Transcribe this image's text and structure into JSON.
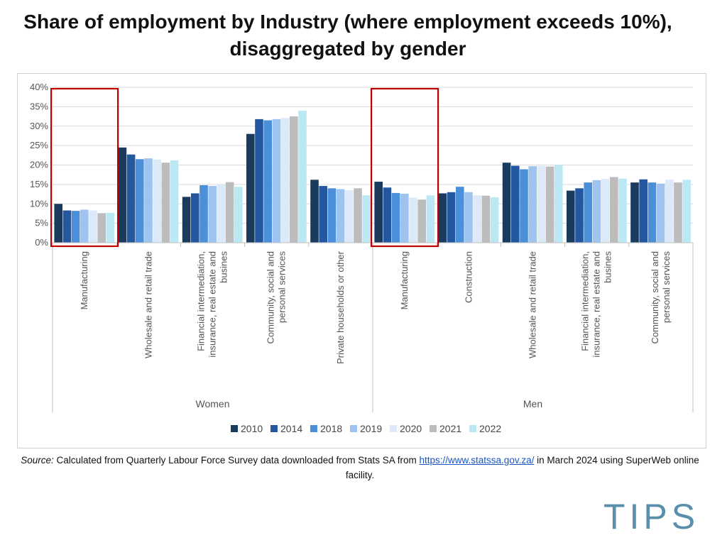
{
  "title": "Share of employment by Industry (where employment exceeds 10%), disaggregated by gender",
  "source": {
    "label": "Source:",
    "text_before": " Calculated from Quarterly Labour Force Survey data downloaded from Stats SA from ",
    "link": "https://www.statssa.gov.za/",
    "text_after": " in March 2024 using SuperWeb online facility."
  },
  "logo": {
    "text": "TIPS",
    "color": "#5a8fab",
    "accent": "#d9a441"
  },
  "chart_data": {
    "type": "bar",
    "yticks": [
      "0%",
      "5%",
      "10%",
      "15%",
      "20%",
      "25%",
      "30%",
      "35%",
      "40%"
    ],
    "ylim": [
      0,
      40
    ],
    "grid": true,
    "legend_position": "bottom",
    "highlight_color": "#c00000",
    "highlighted_categories": [
      "Women|Manufacturing",
      "Men|Manufacturing"
    ],
    "series": [
      {
        "name": "2010",
        "color": "#1a3a5e"
      },
      {
        "name": "2014",
        "color": "#2358a0"
      },
      {
        "name": "2018",
        "color": "#4a8fd8"
      },
      {
        "name": "2019",
        "color": "#9ec3ee"
      },
      {
        "name": "2020",
        "color": "#dbe9f8"
      },
      {
        "name": "2021",
        "color": "#bcbcbc"
      },
      {
        "name": "2022",
        "color": "#bce8f4"
      }
    ],
    "groups": [
      {
        "label": "Women",
        "categories": [
          {
            "lines": [
              "Manufacturing"
            ],
            "values": [
              10.0,
              8.3,
              8.2,
              8.5,
              8.3,
              7.6,
              7.7
            ]
          },
          {
            "lines": [
              "Wholesale and retail trade"
            ],
            "values": [
              24.5,
              22.7,
              21.5,
              21.7,
              21.4,
              20.6,
              21.2
            ]
          },
          {
            "lines": [
              "Financial intermediation,",
              "insurance, real estate and",
              "busines"
            ],
            "values": [
              11.8,
              12.7,
              14.8,
              14.6,
              15.0,
              15.6,
              14.4
            ]
          },
          {
            "lines": [
              "Community, social and",
              "personal services"
            ],
            "values": [
              28.0,
              31.8,
              31.5,
              31.8,
              32.1,
              32.5,
              34.0
            ]
          },
          {
            "lines": [
              "Private households or other"
            ],
            "values": [
              16.2,
              14.6,
              14.0,
              13.8,
              13.5,
              14.0,
              12.2
            ]
          }
        ]
      },
      {
        "label": "Men",
        "categories": [
          {
            "lines": [
              "Manufacturing"
            ],
            "values": [
              15.7,
              14.2,
              12.8,
              12.6,
              11.6,
              11.1,
              12.2
            ]
          },
          {
            "lines": [
              "Construction"
            ],
            "values": [
              12.7,
              13.0,
              14.4,
              13.0,
              12.2,
              12.1,
              11.7
            ]
          },
          {
            "lines": [
              "Wholesale and retail trade"
            ],
            "values": [
              20.6,
              19.8,
              18.9,
              19.7,
              19.8,
              19.6,
              20.0
            ]
          },
          {
            "lines": [
              "Financial intermediation,",
              "insurance, real estate and",
              "busines"
            ],
            "values": [
              13.4,
              14.0,
              15.5,
              16.1,
              16.4,
              16.9,
              16.5
            ]
          },
          {
            "lines": [
              "Community, social and",
              "personal services"
            ],
            "values": [
              15.5,
              16.3,
              15.5,
              15.2,
              16.2,
              15.5,
              16.2
            ]
          }
        ]
      }
    ]
  }
}
